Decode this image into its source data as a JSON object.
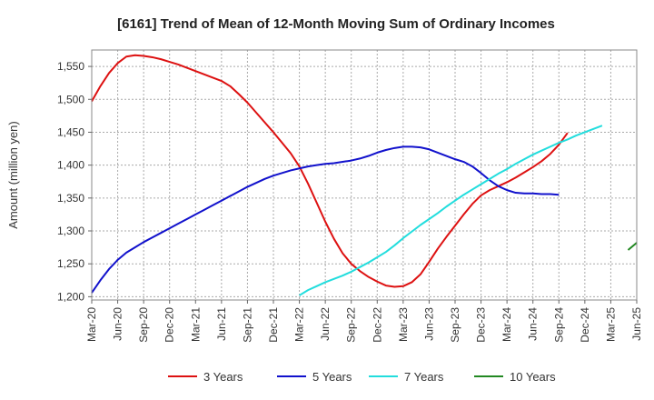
{
  "chart_data": {
    "type": "line",
    "title": "[6161]  Trend of Mean of 12-Month Moving Sum of Ordinary Incomes",
    "xlabel": "",
    "ylabel": "Amount (million yen)",
    "ylim": [
      1195,
      1575
    ],
    "yticks": [
      1200,
      1250,
      1300,
      1350,
      1400,
      1450,
      1500,
      1550
    ],
    "ytick_labels": [
      "1,200",
      "1,250",
      "1,300",
      "1,350",
      "1,400",
      "1,450",
      "1,500",
      "1,550"
    ],
    "x_months_range": [
      0,
      63
    ],
    "x_tick_labels": [
      "Mar-20",
      "Jun-20",
      "Sep-20",
      "Dec-20",
      "Mar-21",
      "Jun-21",
      "Sep-21",
      "Dec-21",
      "Mar-22",
      "Jun-22",
      "Sep-22",
      "Dec-22",
      "Mar-23",
      "Jun-23",
      "Sep-23",
      "Dec-23",
      "Mar-24",
      "Jun-24",
      "Sep-24",
      "Dec-24",
      "Mar-25",
      "Jun-25"
    ],
    "x_tick_months": [
      0,
      3,
      6,
      9,
      12,
      15,
      18,
      21,
      24,
      27,
      30,
      33,
      36,
      39,
      42,
      45,
      48,
      51,
      54,
      57,
      60,
      63
    ],
    "grid": true,
    "legend_position": "bottom",
    "series": [
      {
        "name": "3 Years",
        "color": "#dd1111",
        "start_month": 0,
        "values": [
          1497,
          1520,
          1540,
          1555,
          1565,
          1567,
          1566,
          1564,
          1561,
          1557,
          1553,
          1548,
          1543,
          1538,
          1533,
          1528,
          1520,
          1508,
          1495,
          1480,
          1465,
          1450,
          1434,
          1418,
          1398,
          1372,
          1343,
          1314,
          1288,
          1266,
          1250,
          1239,
          1230,
          1223,
          1217,
          1215,
          1216,
          1222,
          1234,
          1253,
          1273,
          1291,
          1308,
          1325,
          1341,
          1354,
          1362,
          1368,
          1374,
          1381,
          1389,
          1397,
          1406,
          1417,
          1431,
          1449
        ]
      },
      {
        "name": "5 Years",
        "color": "#1111cc",
        "start_month": 0,
        "values": [
          1206,
          1225,
          1242,
          1256,
          1267,
          1275,
          1283,
          1290,
          1297,
          1304,
          1311,
          1318,
          1325,
          1332,
          1339,
          1346,
          1353,
          1360,
          1367,
          1373,
          1379,
          1384,
          1388,
          1392,
          1395,
          1398,
          1400,
          1402,
          1403,
          1405,
          1407,
          1410,
          1414,
          1419,
          1423,
          1426,
          1428,
          1428,
          1427,
          1424,
          1419,
          1414,
          1409,
          1405,
          1398,
          1388,
          1377,
          1368,
          1362,
          1358,
          1357,
          1357,
          1356,
          1356,
          1355
        ]
      },
      {
        "name": "7 Years",
        "color": "#22dddd",
        "start_month": 24,
        "values": [
          1202,
          1210,
          1216,
          1222,
          1227,
          1232,
          1238,
          1245,
          1252,
          1260,
          1268,
          1278,
          1289,
          1299,
          1309,
          1318,
          1327,
          1337,
          1346,
          1355,
          1363,
          1371,
          1379,
          1387,
          1394,
          1402,
          1409,
          1416,
          1422,
          1428,
          1434,
          1439,
          1445,
          1450,
          1455,
          1460
        ]
      },
      {
        "name": "10 Years",
        "color": "#228822",
        "start_month": 62,
        "values": [
          1271,
          1282
        ]
      }
    ]
  }
}
